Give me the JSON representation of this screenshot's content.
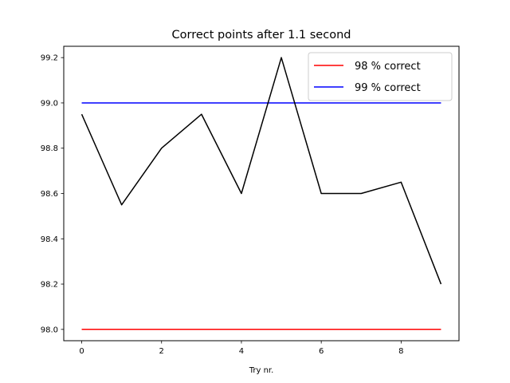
{
  "chart_data": {
    "type": "line",
    "title": "Correct points after 1.1 second",
    "xlabel": "Try nr.",
    "ylabel": "",
    "xlim": [
      -0.45,
      9.45
    ],
    "ylim": [
      97.95,
      99.25
    ],
    "xticks": [
      0,
      2,
      4,
      6,
      8
    ],
    "yticks": [
      98.0,
      98.2,
      98.4,
      98.6,
      98.8,
      99.0,
      99.2
    ],
    "ytick_labels": [
      "98.0",
      "98.2",
      "98.4",
      "98.6",
      "98.8",
      "99.0",
      "99.2"
    ],
    "grid": false,
    "legend_position": "top-right",
    "series": [
      {
        "name": "98 % correct",
        "color": "#ff0000",
        "x": [
          0,
          9
        ],
        "y": [
          98.0,
          98.0
        ]
      },
      {
        "name": "99 % correct",
        "color": "#0000ff",
        "x": [
          0,
          9
        ],
        "y": [
          99.0,
          99.0
        ]
      },
      {
        "color": "#000000",
        "x": [
          0,
          1,
          2,
          3,
          4,
          5,
          6,
          7,
          8,
          9
        ],
        "y": [
          98.95,
          98.55,
          98.8,
          98.95,
          98.6,
          99.2,
          98.6,
          98.6,
          98.65,
          98.2
        ]
      }
    ]
  }
}
